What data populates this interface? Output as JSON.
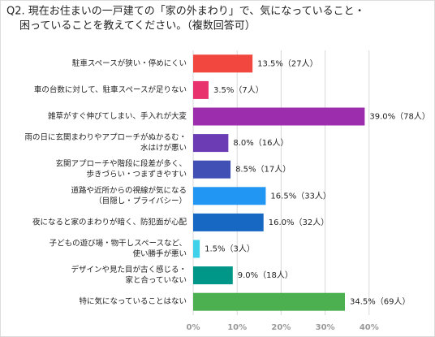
{
  "chart_data": {
    "type": "barh",
    "title_lines": [
      "Q2. 現在お住まいの一戸建ての「家の外まわり」で、気になっていること・",
      "困っていることを教えてください。（複数回答可）"
    ],
    "categories": [
      [
        "駐車スペースが狭い・停めにくい"
      ],
      [
        "車の台数に対して、駐車スペースが足りない"
      ],
      [
        "雑草がすぐ伸びてしまい、手入れが大変"
      ],
      [
        "雨の日に玄関まわりやアプローチがぬかるむ・",
        "水はけが悪い"
      ],
      [
        "玄関アプローチや階段に段差が多く、",
        "歩きづらい・つまずきやすい"
      ],
      [
        "道路や近所からの視線が気になる",
        "（目隠し・プライバシー）"
      ],
      [
        "夜になると家のまわりが暗く、防犯面が心配"
      ],
      [
        "子どもの遊び場・物干しスペースなど、",
        "使い勝手が悪い"
      ],
      [
        "デザインや見た目が古く感じる・",
        "家と合っていない"
      ],
      [
        "特に気になっていることはない"
      ]
    ],
    "values": [
      13.5,
      3.5,
      39.0,
      8.0,
      8.5,
      16.5,
      16.0,
      1.5,
      9.0,
      34.5
    ],
    "value_labels": [
      "13.5%（27人）",
      "3.5%（7人）",
      "39.0%（78人）",
      "8.0%（16人）",
      "8.5%（17人）",
      "16.5%（33人）",
      "16.0%（32人）",
      "1.5%（3人）",
      "9.0%（18人）",
      "34.5%（69人）"
    ],
    "colors": [
      "#f2473f",
      "#e8326e",
      "#9c2eae",
      "#6b3cb3",
      "#4150b5",
      "#2196f3",
      "#1768c2",
      "#3fd0ea",
      "#009688",
      "#4caf50"
    ],
    "xlim": [
      0,
      50
    ],
    "xticks": [
      {
        "value": 0,
        "label": "0%"
      },
      {
        "value": 10,
        "label": "10%"
      },
      {
        "value": 20,
        "label": "20%"
      },
      {
        "value": 30,
        "label": "30%"
      },
      {
        "value": 40,
        "label": "40%"
      }
    ],
    "grid": true
  }
}
